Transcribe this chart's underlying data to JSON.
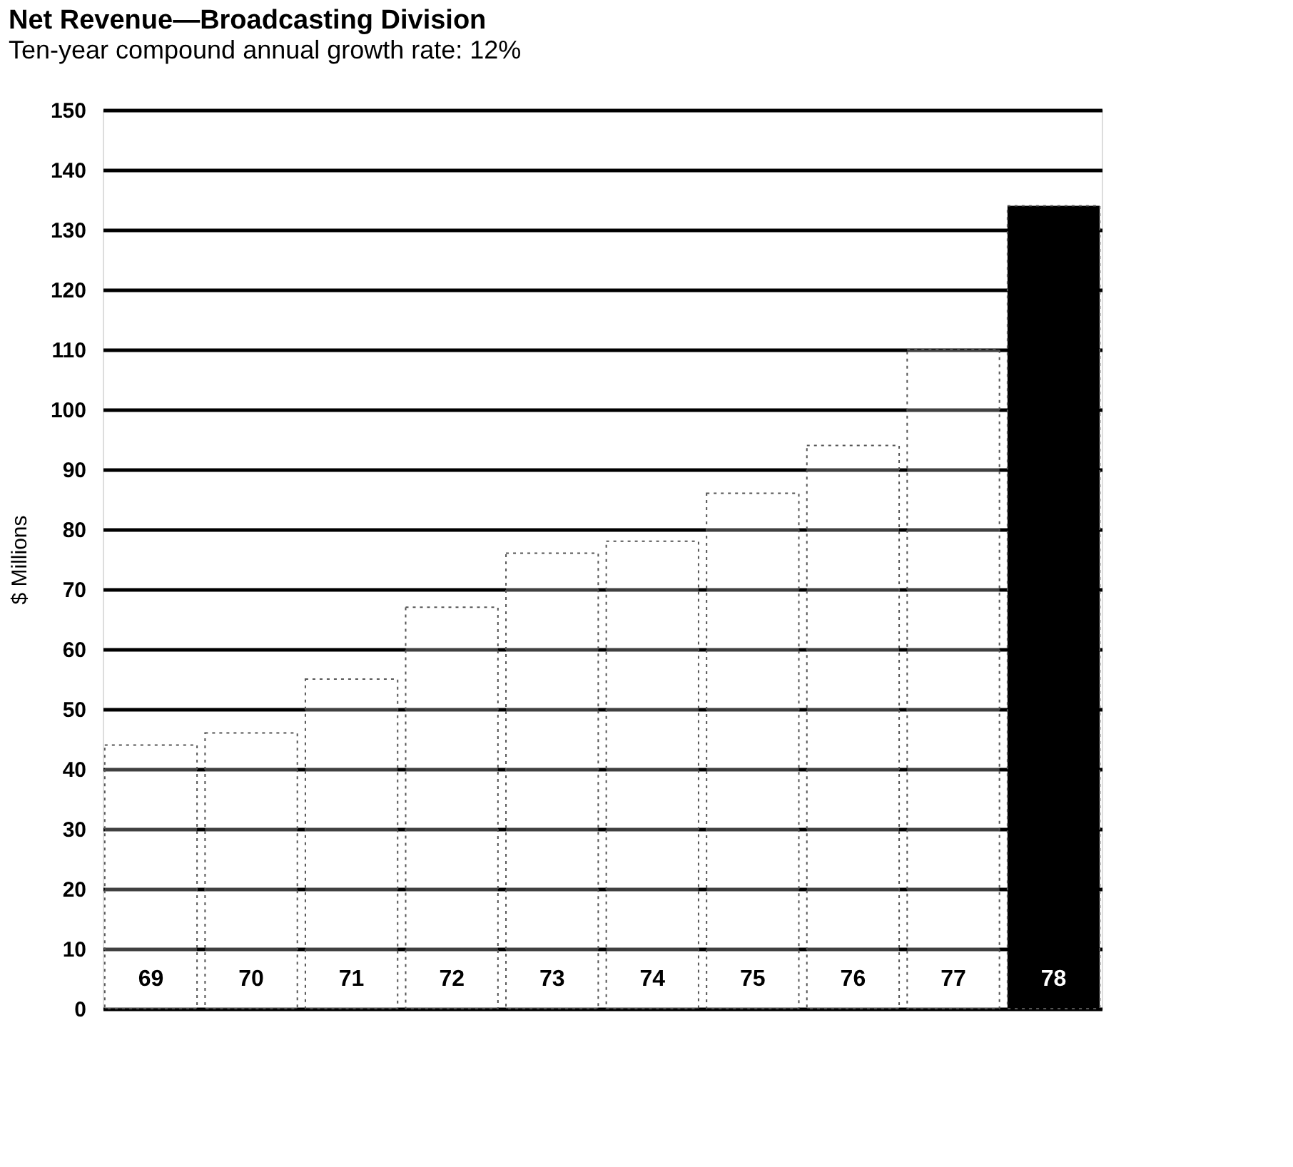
{
  "chart_data": {
    "type": "bar",
    "title": "Net Revenue—Broadcasting Division",
    "subtitle": "Ten-year compound annual growth rate: 12%",
    "ylabel": "$ Millions",
    "categories": [
      "69",
      "70",
      "71",
      "72",
      "73",
      "74",
      "75",
      "76",
      "77",
      "78"
    ],
    "values": [
      44,
      46,
      55,
      67,
      76,
      78,
      86,
      94,
      110,
      134
    ],
    "colors": [
      "#ffffff",
      "#ffffff",
      "#ffffff",
      "#ffffff",
      "#ffffff",
      "#ffffff",
      "#ffffff",
      "#ffffff",
      "#ffffff",
      "#000000"
    ],
    "ylim": [
      0,
      150
    ],
    "yticks": [
      0,
      10,
      20,
      30,
      40,
      50,
      60,
      70,
      80,
      90,
      100,
      110,
      120,
      130,
      140,
      150
    ],
    "grid": "y"
  }
}
